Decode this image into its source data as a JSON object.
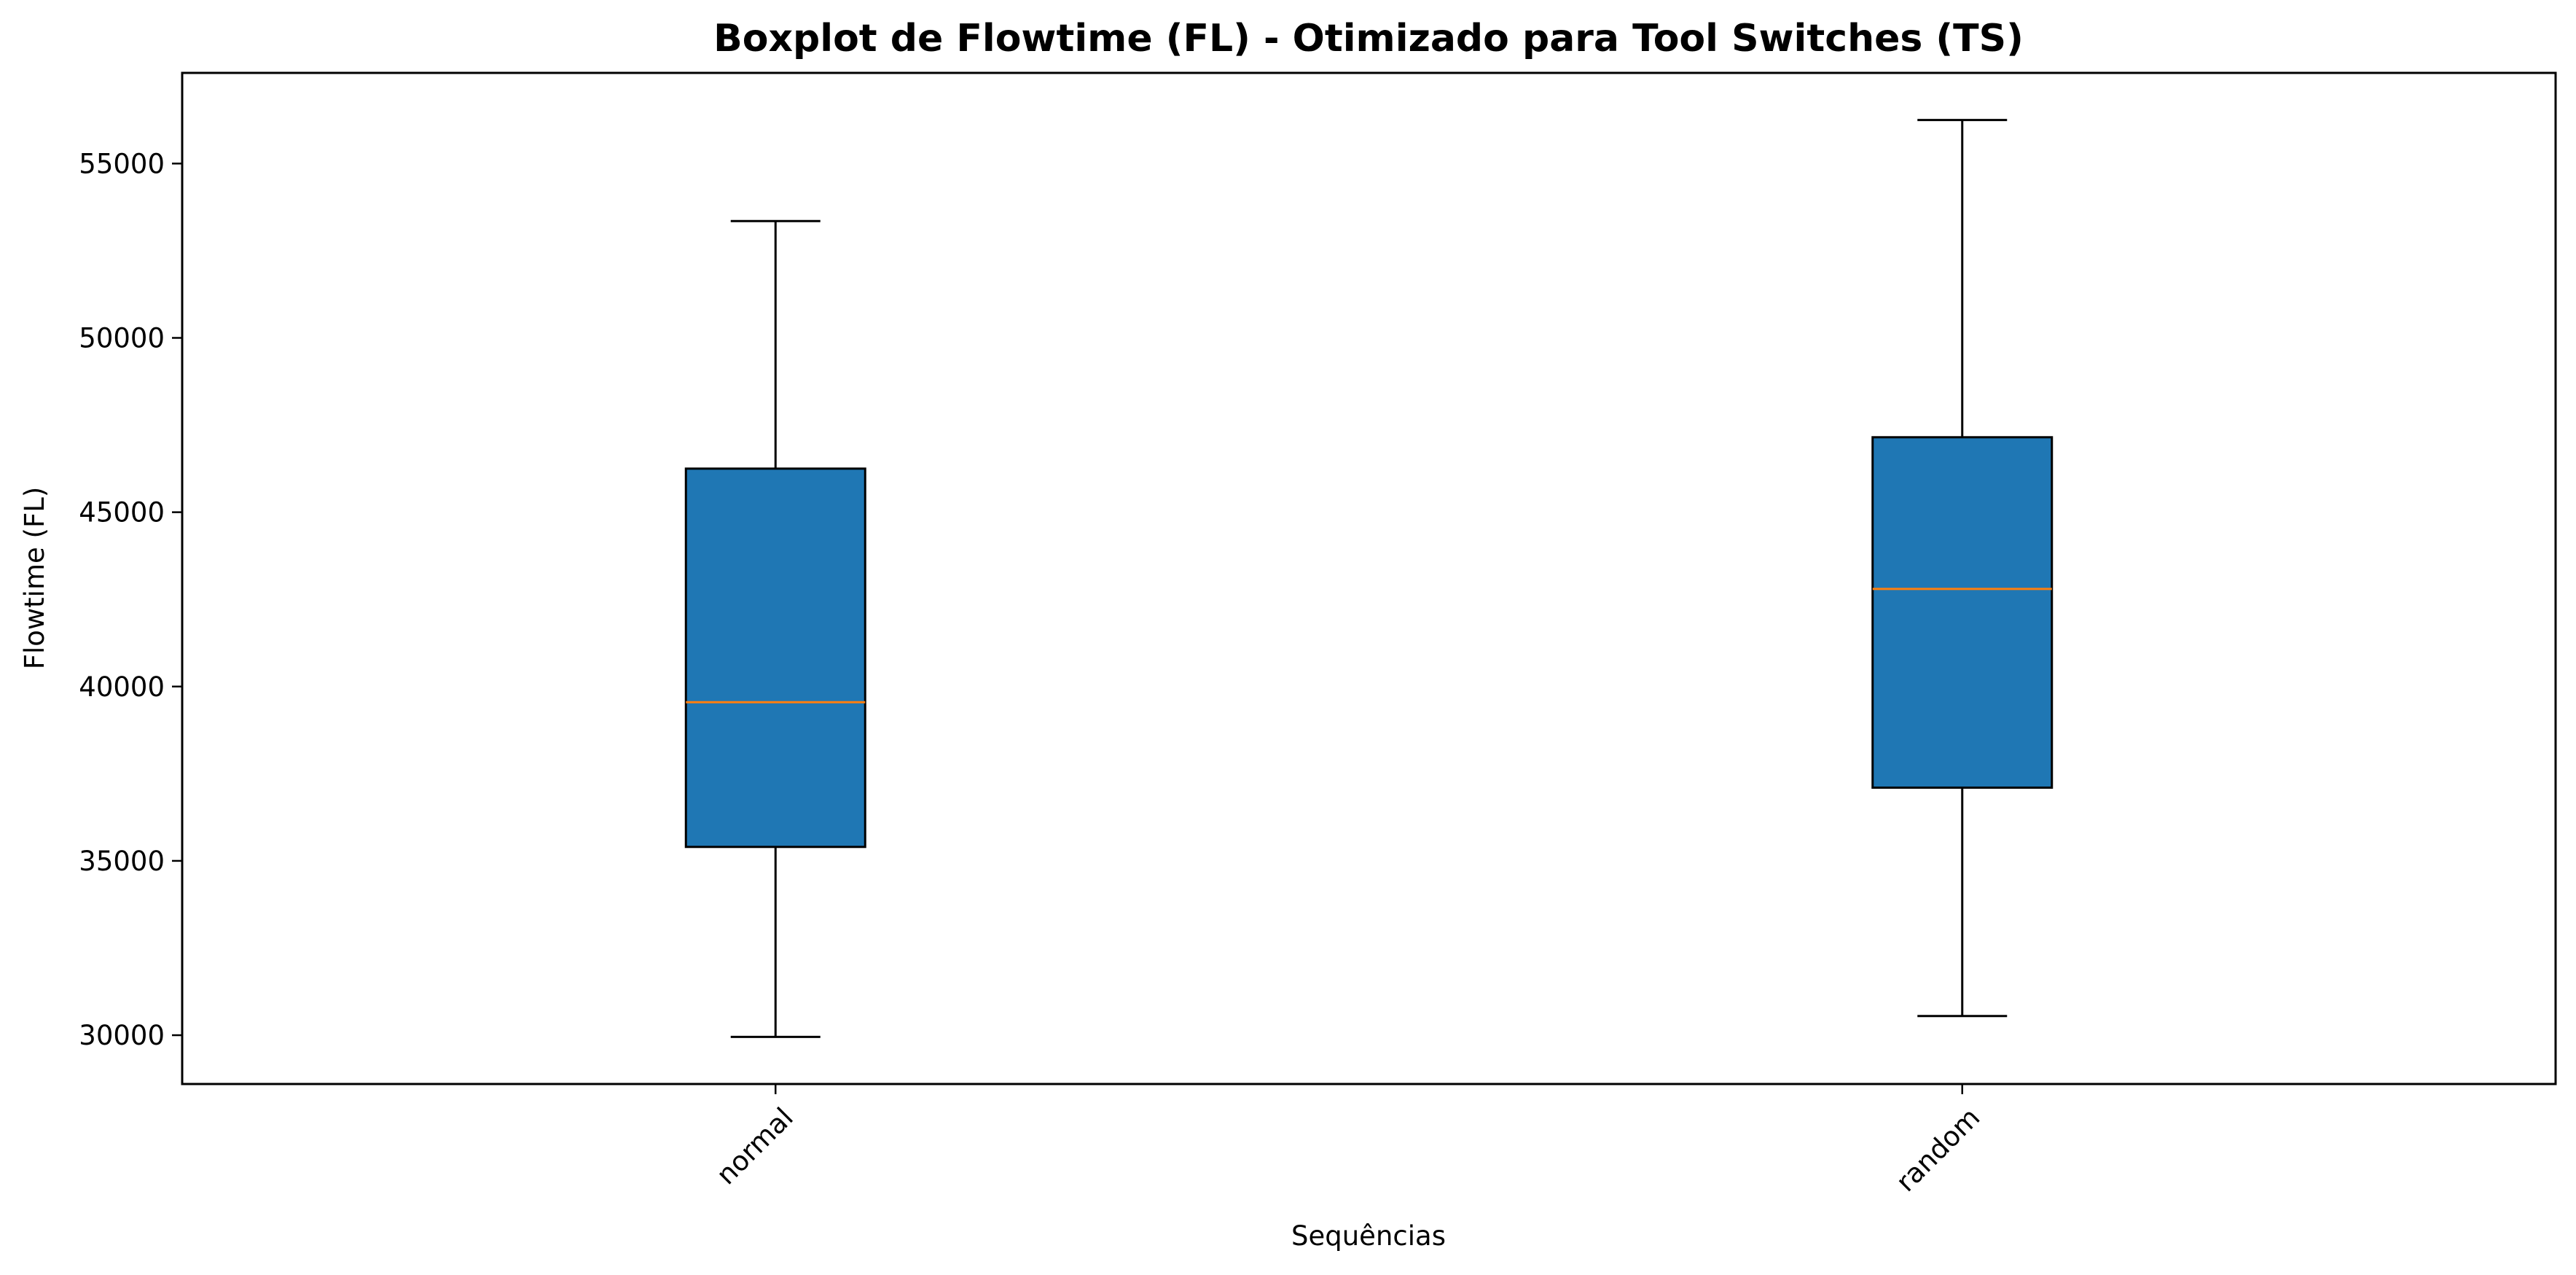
{
  "chart_data": {
    "type": "boxplot",
    "title": "Boxplot de Flowtime (FL) - Otimizado para Tool Switches (TS)",
    "xlabel": "Sequências",
    "ylabel": "Flowtime (FL)",
    "categories": [
      "normal",
      "random"
    ],
    "boxes": [
      {
        "label": "normal",
        "whisker_low": 29950,
        "q1": 35400,
        "median": 39550,
        "q3": 46250,
        "whisker_high": 53350
      },
      {
        "label": "random",
        "whisker_low": 30550,
        "q1": 37100,
        "median": 42800,
        "q3": 47150,
        "whisker_high": 56250
      }
    ],
    "ylim": [
      28600,
      57600
    ],
    "yticks": [
      30000,
      35000,
      40000,
      45000,
      50000,
      55000
    ],
    "ytick_labels": [
      "30000",
      "35000",
      "40000",
      "45000",
      "50000",
      "55000"
    ],
    "x_tick_rotation_deg": 45,
    "grid": false,
    "legend": "none",
    "colors": {
      "box_fill": "#1f77b4",
      "median_line": "#ff7f0e",
      "lines": "#000000"
    }
  }
}
